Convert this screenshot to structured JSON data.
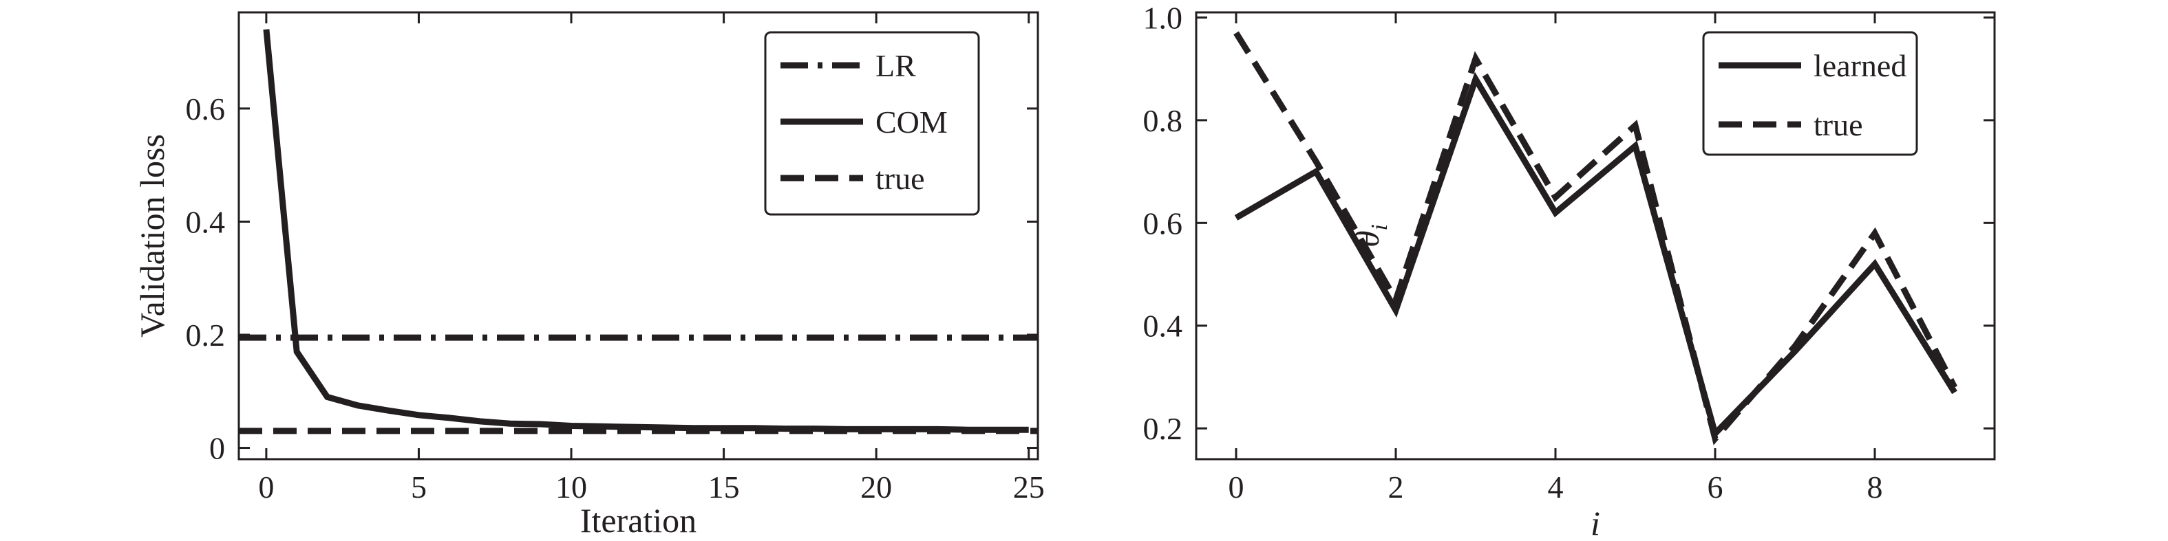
{
  "charts": [
    {
      "chart_data": {
        "type": "line",
        "xlabel": "Iteration",
        "ylabel": "Validation loss",
        "xlim": [
          -0.9,
          25.3
        ],
        "ylim": [
          -0.02,
          0.77
        ],
        "xticks": [
          0,
          5,
          10,
          15,
          20,
          25
        ],
        "yticks": [
          0,
          0.2,
          0.4,
          0.6
        ],
        "ytick_labels": [
          "0",
          "0.2",
          "0.4",
          "0.6"
        ],
        "legend_position": "top-right",
        "series": [
          {
            "name": "LR",
            "style": "dashdot",
            "x": [
              -0.9,
              25.3
            ],
            "y": [
              0.195,
              0.195
            ]
          },
          {
            "name": "COM",
            "style": "solid",
            "x": [
              0,
              1,
              2,
              3,
              4,
              5,
              6,
              7,
              8,
              9,
              10,
              11,
              12,
              13,
              14,
              15,
              16,
              17,
              18,
              19,
              20,
              21,
              22,
              23,
              24,
              25
            ],
            "y": [
              0.74,
              0.17,
              0.09,
              0.075,
              0.066,
              0.058,
              0.053,
              0.047,
              0.043,
              0.042,
              0.039,
              0.038,
              0.037,
              0.036,
              0.035,
              0.035,
              0.035,
              0.034,
              0.034,
              0.033,
              0.033,
              0.033,
              0.033,
              0.032,
              0.032,
              0.032
            ]
          },
          {
            "name": "true",
            "style": "dashed",
            "x": [
              -0.9,
              25.3
            ],
            "y": [
              0.03,
              0.03
            ]
          }
        ]
      }
    },
    {
      "chart_data": {
        "type": "line",
        "xlabel": "i",
        "ylabel": "θ",
        "ylabel_subscript": "i",
        "xlim": [
          -0.5,
          9.5
        ],
        "ylim": [
          0.14,
          1.01
        ],
        "xticks": [
          0,
          2,
          4,
          6,
          8
        ],
        "yticks": [
          0.2,
          0.4,
          0.6,
          0.8,
          1.0
        ],
        "ytick_labels": [
          "0.2",
          "0.4",
          "0.6",
          "0.8",
          "1.0"
        ],
        "legend_position": "top-right",
        "series": [
          {
            "name": "learned",
            "style": "solid",
            "x": [
              0,
              1,
              2,
              3,
              4,
              5,
              6,
              7,
              8,
              9
            ],
            "y": [
              0.61,
              0.7,
              0.43,
              0.88,
              0.62,
              0.75,
              0.19,
              0.35,
              0.52,
              0.27
            ]
          },
          {
            "name": "true",
            "style": "dashed",
            "x": [
              0,
              1,
              2,
              3,
              4,
              5,
              6,
              7,
              8,
              9
            ],
            "y": [
              0.97,
              0.72,
              0.45,
              0.92,
              0.65,
              0.79,
              0.18,
              0.36,
              0.58,
              0.28
            ]
          }
        ]
      }
    }
  ]
}
